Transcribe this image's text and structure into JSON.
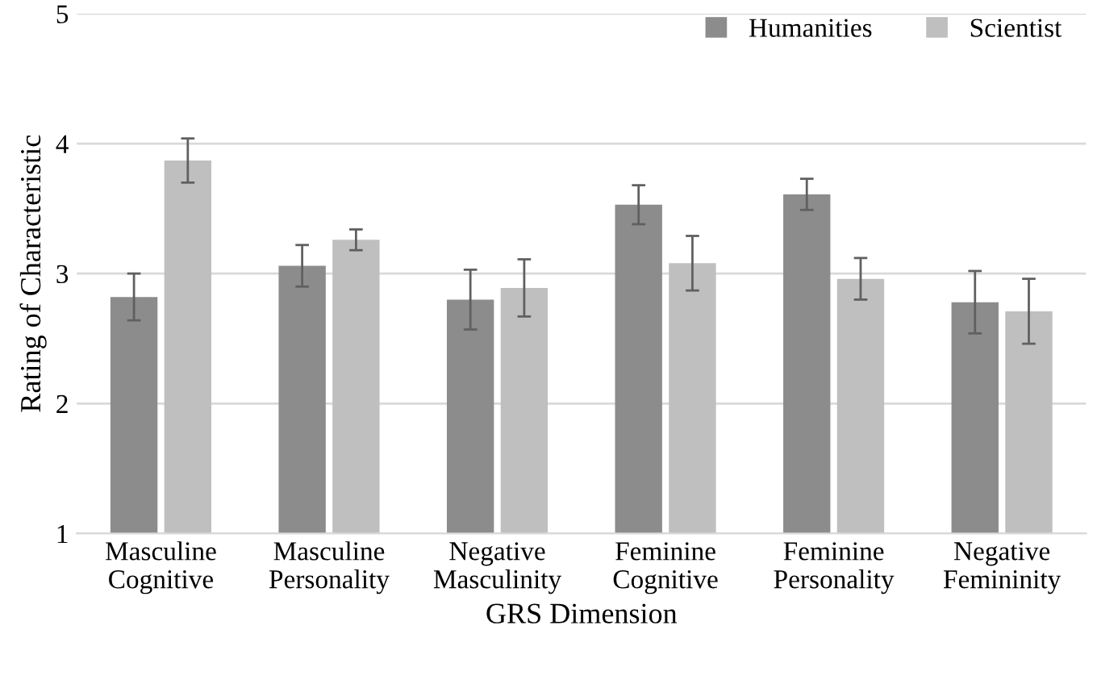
{
  "chart_data": {
    "type": "bar",
    "xlabel": "GRS Dimension",
    "ylabel": "Rating of Characteristic",
    "categories": [
      "Masculine\nCognitive",
      "Masculine\nPersonality",
      "Negative\nMasculinity",
      "Feminine\nCognitive",
      "Feminine\nPersonality",
      "Negative\nFemininity"
    ],
    "series": [
      {
        "name": "Humanities",
        "color": "#8c8c8c",
        "values": [
          2.82,
          3.06,
          2.8,
          3.53,
          3.61,
          2.78
        ],
        "errors": [
          0.18,
          0.16,
          0.23,
          0.15,
          0.12,
          0.24
        ]
      },
      {
        "name": "Scientist",
        "color": "#bfbfbf",
        "values": [
          3.87,
          3.26,
          2.89,
          3.08,
          2.96,
          2.71
        ],
        "errors": [
          0.17,
          0.08,
          0.22,
          0.21,
          0.16,
          0.25
        ]
      }
    ],
    "ylim": [
      1,
      5
    ],
    "yticks": [
      1,
      2,
      3,
      4,
      5
    ],
    "grid": "y",
    "legend": "top right"
  }
}
